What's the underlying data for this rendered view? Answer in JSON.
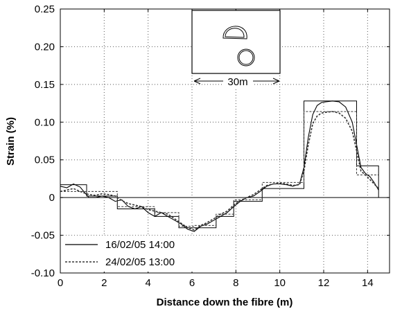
{
  "chart_data": {
    "type": "line",
    "xlabel": "Distance down the fibre (m)",
    "ylabel": "Strain (%)",
    "xlim": [
      0,
      15
    ],
    "ylim": [
      -0.1,
      0.25
    ],
    "x_ticks": [
      0,
      2,
      4,
      6,
      8,
      10,
      12,
      14
    ],
    "x_tick_labels": [
      "0",
      "2",
      "4",
      "6",
      "8",
      "10",
      "12",
      "14"
    ],
    "y_ticks": [
      -0.1,
      -0.05,
      0,
      0.05,
      0.1,
      0.15,
      0.2,
      0.25
    ],
    "y_tick_labels": [
      "-0.10",
      "-0.05",
      "0",
      "0.05",
      "0.10",
      "0.15",
      "0.20",
      "0.25"
    ],
    "grid": "dotted",
    "legend_position": "bottom-left",
    "series": [
      {
        "name": "16/02/05 14:00",
        "style": "solid",
        "step_x": [
          0,
          0.6,
          0.6,
          1.2,
          1.2,
          2.6,
          2.6,
          4.3,
          4.3,
          5.4,
          5.4,
          6.1,
          6.1,
          7.1,
          7.1,
          7.9,
          7.9,
          9.2,
          9.2,
          11.1,
          11.1,
          13.5,
          13.5,
          14.5,
          14.5
        ],
        "step_y": [
          0.017,
          0.017,
          0.017,
          0.017,
          0.002,
          0.002,
          -0.015,
          -0.015,
          -0.025,
          -0.025,
          -0.04,
          -0.04,
          -0.04,
          -0.04,
          -0.025,
          -0.025,
          -0.005,
          -0.005,
          0.012,
          0.012,
          0.128,
          0.128,
          0.042,
          0.042,
          0
        ],
        "x": [
          0,
          0.3,
          0.6,
          0.9,
          1.1,
          1.3,
          1.6,
          1.9,
          2.2,
          2.5,
          2.8,
          3.1,
          3.4,
          3.7,
          4.0,
          4.3,
          4.6,
          4.9,
          5.2,
          5.5,
          5.8,
          6.1,
          6.4,
          6.7,
          7.0,
          7.3,
          7.6,
          7.9,
          8.2,
          8.5,
          8.8,
          9.1,
          9.4,
          9.7,
          10.0,
          10.3,
          10.6,
          10.9,
          11.1,
          11.3,
          11.5,
          11.7,
          11.9,
          12.1,
          12.4,
          12.7,
          13.0,
          13.3,
          13.5,
          13.7,
          13.9,
          14.1,
          14.3,
          14.5
        ],
        "y": [
          0.015,
          0.013,
          0.018,
          0.014,
          0.007,
          0.0,
          0.0,
          0.002,
          0.0,
          -0.005,
          -0.003,
          -0.012,
          -0.015,
          -0.012,
          -0.02,
          -0.025,
          -0.02,
          -0.025,
          -0.03,
          -0.035,
          -0.042,
          -0.045,
          -0.038,
          -0.035,
          -0.03,
          -0.025,
          -0.02,
          -0.012,
          -0.005,
          0.0,
          0.002,
          0.008,
          0.015,
          0.018,
          0.018,
          0.017,
          0.015,
          0.018,
          0.04,
          0.08,
          0.11,
          0.122,
          0.126,
          0.127,
          0.128,
          0.127,
          0.12,
          0.1,
          0.07,
          0.04,
          0.032,
          0.028,
          0.02,
          0.01
        ]
      },
      {
        "name": "24/02/05 13:00",
        "style": "dotted",
        "step_x": [
          0,
          2.6,
          2.6,
          4.3,
          4.3,
          5.4,
          5.4,
          6.1,
          6.1,
          7.1,
          7.1,
          7.9,
          7.9,
          9.2,
          9.2,
          11.1,
          11.1,
          13.5,
          13.5,
          14.5
        ],
        "step_y": [
          0.008,
          0.008,
          -0.012,
          -0.012,
          -0.02,
          -0.02,
          -0.038,
          -0.038,
          -0.037,
          -0.037,
          -0.022,
          -0.022,
          -0.003,
          -0.003,
          0.02,
          0.02,
          0.114,
          0.114,
          0.03,
          0.03
        ],
        "x": [
          0,
          0.3,
          0.6,
          0.9,
          1.1,
          1.3,
          1.6,
          1.9,
          2.2,
          2.5,
          2.8,
          3.1,
          3.4,
          3.7,
          4.0,
          4.3,
          4.6,
          4.9,
          5.2,
          5.5,
          5.8,
          6.1,
          6.4,
          6.7,
          7.0,
          7.3,
          7.6,
          7.9,
          8.2,
          8.5,
          8.8,
          9.1,
          9.4,
          9.7,
          10.0,
          10.3,
          10.6,
          10.9,
          11.1,
          11.3,
          11.5,
          11.7,
          11.9,
          12.1,
          12.4,
          12.7,
          13.0,
          13.3,
          13.5,
          13.7,
          13.9,
          14.1,
          14.3,
          14.5
        ],
        "y": [
          0.008,
          0.01,
          0.012,
          0.008,
          0.006,
          0.004,
          0.003,
          0.005,
          0.004,
          0.002,
          -0.004,
          -0.008,
          -0.01,
          -0.012,
          -0.016,
          -0.018,
          -0.02,
          -0.022,
          -0.028,
          -0.034,
          -0.04,
          -0.043,
          -0.037,
          -0.033,
          -0.028,
          -0.022,
          -0.018,
          -0.01,
          -0.004,
          0.0,
          0.004,
          0.01,
          0.016,
          0.018,
          0.019,
          0.018,
          0.016,
          0.017,
          0.035,
          0.07,
          0.098,
          0.108,
          0.112,
          0.113,
          0.114,
          0.112,
          0.105,
          0.088,
          0.062,
          0.035,
          0.03,
          0.024,
          0.018,
          0.012
        ]
      }
    ],
    "inset": {
      "label": "30m",
      "shapes": [
        "tunnel-profile",
        "circular-tunnel"
      ]
    }
  }
}
